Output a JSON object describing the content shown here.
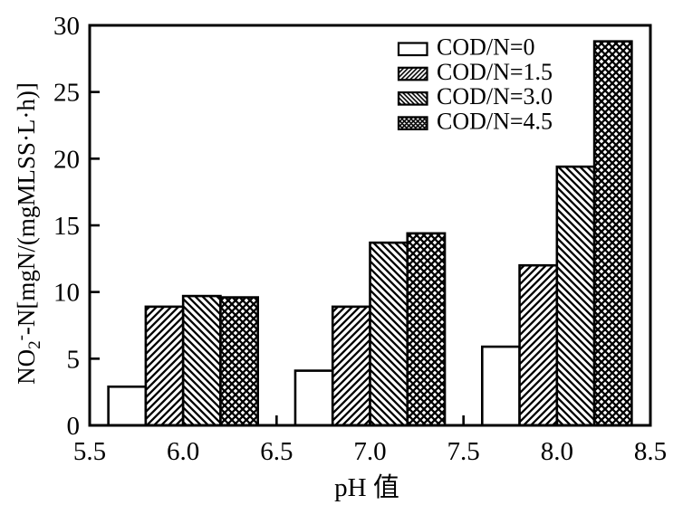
{
  "chart_data": {
    "type": "bar",
    "title": "",
    "xlabel": "pH 值",
    "ylabel_plain": "NO2--N[mgN/(mgMLSS·L·h)]",
    "ylabel_parts": [
      {
        "text": "NO",
        "script": "normal"
      },
      {
        "text": "2",
        "script": "sub"
      },
      {
        "text": "-",
        "script": "sup"
      },
      {
        "text": "-N[mgN/(mgMLSS·L·h)]",
        "script": "normal"
      }
    ],
    "categories": [
      6.0,
      7.0,
      8.0
    ],
    "series": [
      {
        "name": "COD/N=0",
        "pattern": "none",
        "values": [
          2.9,
          4.1,
          5.9
        ]
      },
      {
        "name": "COD/N=1.5",
        "pattern": "diag-forward",
        "values": [
          8.9,
          8.9,
          12.0
        ]
      },
      {
        "name": "COD/N=3.0",
        "pattern": "diag-backward",
        "values": [
          9.7,
          13.7,
          19.4
        ]
      },
      {
        "name": "COD/N=4.5",
        "pattern": "crosshatch",
        "values": [
          9.6,
          14.4,
          28.8
        ]
      }
    ],
    "x_ticks": [
      5.5,
      6.0,
      6.5,
      7.0,
      7.5,
      8.0,
      8.5
    ],
    "y_ticks": [
      0,
      5,
      10,
      15,
      20,
      25,
      30
    ],
    "xlim": [
      5.5,
      8.5
    ],
    "ylim": [
      0,
      30
    ],
    "bar_width_x_units": 0.2,
    "grid": false,
    "legend_position": "top-right-inside",
    "colors": {
      "foreground": "#000000",
      "background": "#ffffff"
    }
  }
}
